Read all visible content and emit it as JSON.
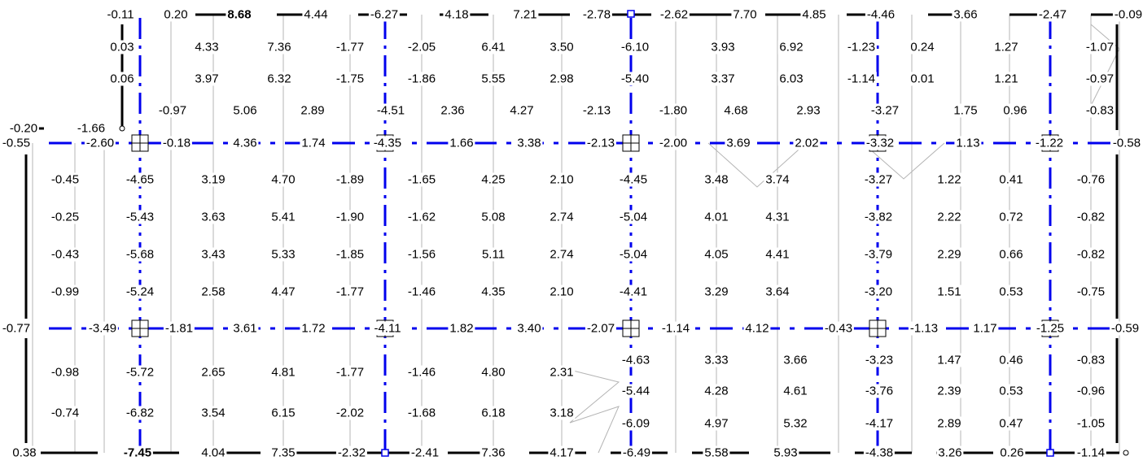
{
  "diagram": {
    "colors": {
      "background": "#ffffff",
      "frame_line": "#000000",
      "column_line": "#0000ee",
      "thin_line": "#b4b4b4",
      "text": "#000000"
    },
    "rows": [
      {
        "role": "top-edge",
        "labels": [
          "-0.11",
          "0.20",
          "8.68",
          "4.44",
          "-6.27",
          "4.18",
          "7.21",
          "-2.78",
          "-2.62",
          "7.70",
          "4.85",
          "-4.46",
          "3.66",
          "-2.47",
          "-0.09"
        ]
      },
      {
        "role": "field",
        "labels": [
          "0.03",
          "4.33",
          "7.36",
          "-1.77",
          "-2.05",
          "6.41",
          "3.50",
          "-6.10",
          "3.93",
          "6.92",
          "-1.23",
          "0.24",
          "1.27",
          "-1.07"
        ]
      },
      {
        "role": "field",
        "labels": [
          "0.06",
          "3.97",
          "6.32",
          "-1.75",
          "-1.86",
          "5.55",
          "2.98",
          "-5.40",
          "3.37",
          "6.03",
          "-1.14",
          "0.01",
          "1.21",
          "-0.97"
        ]
      },
      {
        "role": "field",
        "labels": [
          "-0.97",
          "5.06",
          "2.89",
          "-4.51",
          "2.36",
          "4.27",
          "-2.13",
          "-1.80",
          "4.68",
          "2.93",
          "-3.27",
          "1.75",
          "0.96",
          "-0.83"
        ]
      },
      {
        "role": "upper-step",
        "labels": [
          "-0.20",
          "-1.66"
        ]
      },
      {
        "role": "upper-axis",
        "labels": [
          "-0.55",
          "-2.60",
          "-0.18",
          "4.36",
          "1.74",
          "-4.35",
          "1.66",
          "3.38",
          "-2.13",
          "-2.00",
          "3.69",
          "2.02",
          "-3.32",
          "1.13",
          "-1.22",
          "-0.58"
        ]
      },
      {
        "role": "field",
        "labels": [
          "-0.45",
          "-4.65",
          "3.19",
          "4.70",
          "-1.89",
          "-1.65",
          "4.25",
          "2.10",
          "-4.45",
          "3.48",
          "3.74",
          "-3.27",
          "1.22",
          "0.41",
          "-0.76"
        ]
      },
      {
        "role": "field",
        "labels": [
          "-0.25",
          "-5.43",
          "3.63",
          "5.41",
          "-1.90",
          "-1.62",
          "5.08",
          "2.74",
          "-5.04",
          "4.01",
          "4.31",
          "-3.82",
          "2.22",
          "0.72",
          "-0.82"
        ]
      },
      {
        "role": "field",
        "labels": [
          "-0.43",
          "-5.68",
          "3.43",
          "5.33",
          "-1.85",
          "-1.56",
          "5.11",
          "2.74",
          "-5.04",
          "4.05",
          "4.41",
          "-3.79",
          "2.29",
          "0.66",
          "-0.82"
        ]
      },
      {
        "role": "field",
        "labels": [
          "-0.99",
          "-5.24",
          "2.58",
          "4.47",
          "-1.77",
          "-1.46",
          "4.35",
          "2.10",
          "-4.41",
          "3.29",
          "3.64",
          "-3.20",
          "1.51",
          "0.53",
          "-0.75"
        ]
      },
      {
        "role": "lower-axis",
        "labels": [
          "-0.77",
          "-3.49",
          "-1.81",
          "3.61",
          "1.72",
          "-4.11",
          "1.82",
          "3.40",
          "-2.07",
          "-1.14",
          "4.12",
          "-0.43",
          "-1.13",
          "1.17",
          "-1.25",
          "-0.59"
        ]
      },
      {
        "role": "field",
        "labels": [
          "-4.63",
          "3.33",
          "3.66",
          "-3.23",
          "1.47",
          "0.46",
          "-0.83"
        ]
      },
      {
        "role": "field",
        "labels": [
          "-0.98",
          "-5.72",
          "2.65",
          "4.81",
          "-1.77",
          "-1.46",
          "4.80",
          "2.31"
        ]
      },
      {
        "role": "field",
        "labels": [
          "-5.44",
          "4.28",
          "4.61",
          "-3.76",
          "2.39",
          "0.53",
          "-0.96"
        ]
      },
      {
        "role": "field",
        "labels": [
          "-0.74",
          "-6.82",
          "3.54",
          "6.15",
          "-2.02",
          "-1.68",
          "6.18",
          "3.18"
        ]
      },
      {
        "role": "field",
        "labels": [
          "-6.09",
          "4.97",
          "5.32",
          "-4.17",
          "2.89",
          "0.47",
          "-1.05"
        ]
      },
      {
        "role": "bottom-edge",
        "labels": [
          "0.38",
          "-7.45",
          "4.04",
          "7.35",
          "-2.32",
          "-2.41",
          "7.36",
          "4.17",
          "-6.49",
          "5.58",
          "5.93",
          "-4.38",
          "3.26",
          "0.26",
          "-1.14"
        ]
      }
    ]
  }
}
